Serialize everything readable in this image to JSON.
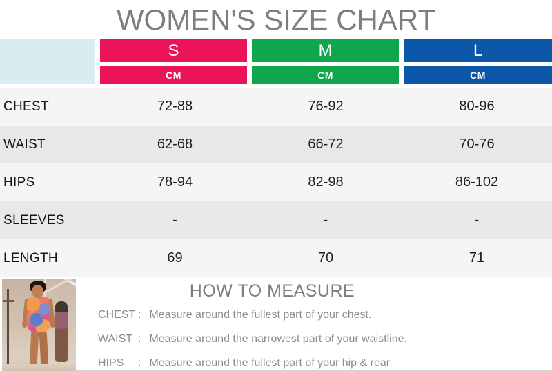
{
  "title": "WOMEN'S SIZE CHART",
  "colors": {
    "size_s": "#eb1458",
    "size_m": "#0fa64c",
    "size_l": "#0d57a8",
    "corner_cell": "#daecf2",
    "row_light": "#f6f5f5",
    "row_dark": "#e9e8e8",
    "title_gray": "#7e7e7e",
    "body_text": "#1f1f1f",
    "howto_gray": "#8c8c8c"
  },
  "size_chart": {
    "unit_label": "CM",
    "columns": [
      {
        "name": "S"
      },
      {
        "name": "M"
      },
      {
        "name": "L"
      }
    ],
    "rows": [
      {
        "label": "CHEST",
        "values": [
          "72-88",
          "76-92",
          "80-96"
        ]
      },
      {
        "label": "WAIST",
        "values": [
          "62-68",
          "66-72",
          "70-76"
        ]
      },
      {
        "label": "HIPS",
        "values": [
          "78-94",
          "82-98",
          "86-102"
        ]
      },
      {
        "label": "SLEEVES",
        "values": [
          "-",
          "-",
          "-"
        ]
      },
      {
        "label": "LENGTH",
        "values": [
          "69",
          "70",
          "71"
        ]
      }
    ]
  },
  "how_to_measure": {
    "heading": "HOW TO MEASURE",
    "items": [
      {
        "label": "CHEST",
        "colon": ":",
        "text": "Measure around the fullest part of your chest."
      },
      {
        "label": "WAIST",
        "colon": ":",
        "text": "Measure around the narrowest part of your waistline."
      },
      {
        "label": "HIPS",
        "colon": ":",
        "text": "Measure around the fullest part of your hip & rear."
      }
    ]
  }
}
